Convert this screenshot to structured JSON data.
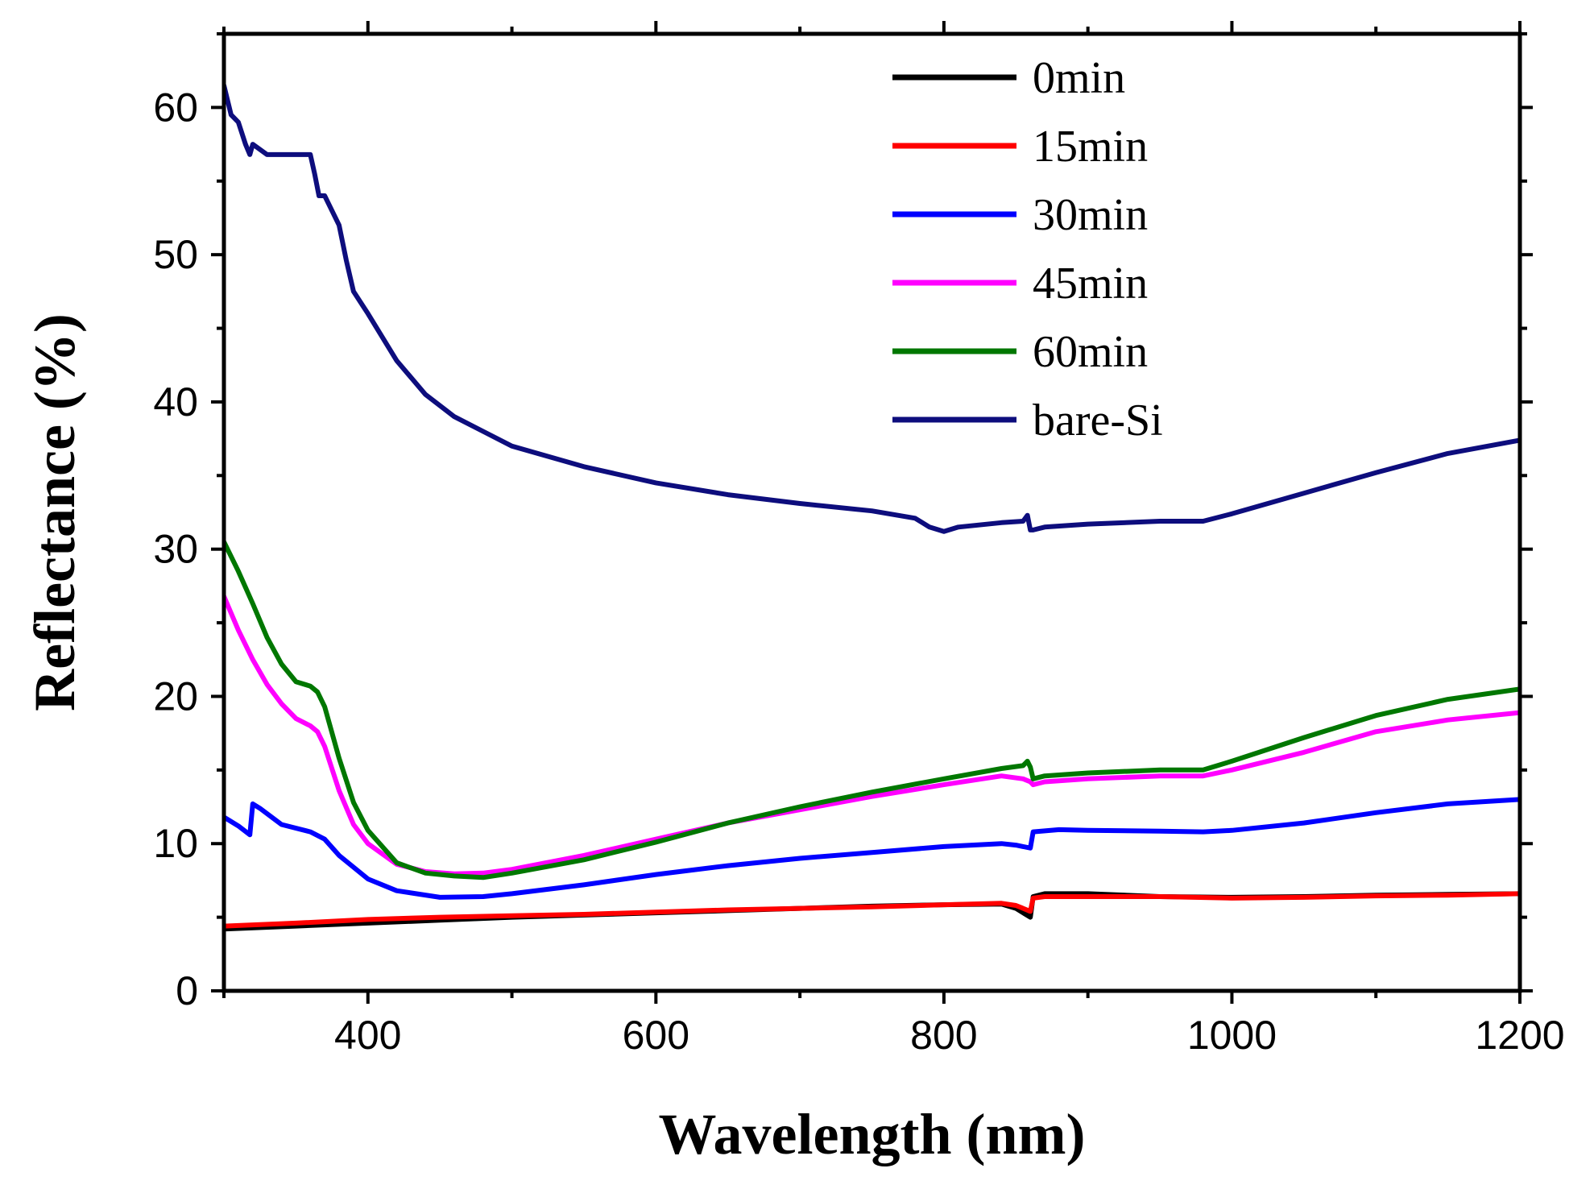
{
  "chart_data": {
    "type": "line",
    "title": "",
    "xlabel": "Wavelength (nm)",
    "ylabel": "Reflectance (%)",
    "xlim": [
      300,
      1200
    ],
    "ylim": [
      0,
      65
    ],
    "xticks": [
      400,
      600,
      800,
      1000,
      1200
    ],
    "yticks": [
      0,
      10,
      20,
      30,
      40,
      50,
      60
    ],
    "xtick_labels": [
      "400",
      "600",
      "800",
      "1000",
      "1200"
    ],
    "ytick_labels": [
      "0",
      "10",
      "20",
      "30",
      "40",
      "50",
      "60"
    ],
    "legend_position": "top-right",
    "grid": false,
    "series": [
      {
        "name": "0min",
        "color": "#000000",
        "x": [
          300,
          350,
          400,
          450,
          500,
          550,
          600,
          650,
          700,
          750,
          800,
          840,
          850,
          855,
          860,
          862,
          870,
          900,
          950,
          1000,
          1050,
          1100,
          1150,
          1200
        ],
        "y": [
          4.2,
          4.4,
          4.6,
          4.8,
          5.0,
          5.15,
          5.3,
          5.45,
          5.6,
          5.75,
          5.85,
          5.9,
          5.6,
          5.3,
          5.0,
          6.4,
          6.6,
          6.6,
          6.4,
          6.35,
          6.4,
          6.5,
          6.55,
          6.6
        ]
      },
      {
        "name": "15min",
        "color": "#ff0000",
        "x": [
          300,
          350,
          400,
          450,
          500,
          550,
          600,
          650,
          700,
          750,
          800,
          840,
          850,
          855,
          860,
          862,
          870,
          900,
          950,
          1000,
          1050,
          1100,
          1150,
          1200
        ],
        "y": [
          4.4,
          4.6,
          4.85,
          5.0,
          5.1,
          5.2,
          5.35,
          5.5,
          5.6,
          5.7,
          5.85,
          5.95,
          5.8,
          5.6,
          5.4,
          6.3,
          6.4,
          6.4,
          6.4,
          6.3,
          6.35,
          6.45,
          6.5,
          6.6
        ]
      },
      {
        "name": "30min",
        "color": "#0000ff",
        "x": [
          300,
          310,
          318,
          320,
          325,
          340,
          360,
          370,
          380,
          400,
          420,
          450,
          480,
          500,
          550,
          600,
          650,
          700,
          750,
          800,
          840,
          850,
          855,
          860,
          862,
          880,
          900,
          950,
          980,
          1000,
          1050,
          1100,
          1150,
          1200
        ],
        "y": [
          11.8,
          11.2,
          10.6,
          12.7,
          12.4,
          11.3,
          10.8,
          10.3,
          9.2,
          7.6,
          6.8,
          6.35,
          6.4,
          6.6,
          7.2,
          7.9,
          8.5,
          9.0,
          9.4,
          9.8,
          10.0,
          9.9,
          9.8,
          9.7,
          10.8,
          10.95,
          10.9,
          10.85,
          10.8,
          10.9,
          11.4,
          12.1,
          12.7,
          13.0
        ]
      },
      {
        "name": "45min",
        "color": "#ff00ff",
        "x": [
          300,
          310,
          320,
          330,
          340,
          350,
          360,
          365,
          370,
          380,
          390,
          400,
          420,
          440,
          460,
          480,
          500,
          550,
          600,
          650,
          700,
          750,
          800,
          840,
          855,
          860,
          862,
          870,
          900,
          950,
          980,
          1000,
          1050,
          1100,
          1150,
          1200
        ],
        "y": [
          26.8,
          24.5,
          22.5,
          20.8,
          19.5,
          18.5,
          18.0,
          17.6,
          16.6,
          13.6,
          11.3,
          10.0,
          8.6,
          8.1,
          7.95,
          8.0,
          8.25,
          9.2,
          10.3,
          11.4,
          12.3,
          13.2,
          14.0,
          14.6,
          14.4,
          14.2,
          14.0,
          14.2,
          14.4,
          14.6,
          14.6,
          15.0,
          16.2,
          17.6,
          18.4,
          18.9
        ]
      },
      {
        "name": "60min",
        "color": "#007700",
        "x": [
          300,
          310,
          320,
          330,
          340,
          350,
          360,
          365,
          370,
          380,
          390,
          400,
          420,
          440,
          460,
          480,
          500,
          550,
          600,
          650,
          700,
          750,
          800,
          840,
          855,
          858,
          860,
          862,
          870,
          900,
          950,
          980,
          1000,
          1050,
          1100,
          1150,
          1200
        ],
        "y": [
          30.5,
          28.5,
          26.3,
          24.0,
          22.2,
          21.0,
          20.7,
          20.3,
          19.3,
          15.8,
          12.8,
          10.9,
          8.7,
          8.0,
          7.8,
          7.7,
          8.0,
          8.9,
          10.1,
          11.4,
          12.5,
          13.5,
          14.4,
          15.1,
          15.3,
          15.6,
          15.2,
          14.4,
          14.6,
          14.8,
          15.0,
          15.0,
          15.6,
          17.2,
          18.7,
          19.8,
          20.5
        ]
      },
      {
        "name": "bare-Si",
        "color": "#0d0d7d",
        "x": [
          300,
          305,
          310,
          315,
          318,
          320,
          330,
          350,
          360,
          363,
          366,
          370,
          380,
          385,
          390,
          400,
          420,
          440,
          460,
          480,
          500,
          550,
          600,
          650,
          700,
          750,
          780,
          790,
          800,
          810,
          840,
          855,
          858,
          860,
          862,
          870,
          900,
          950,
          980,
          1000,
          1050,
          1100,
          1150,
          1200
        ],
        "y": [
          61.5,
          59.5,
          59.0,
          57.5,
          56.8,
          57.5,
          56.8,
          56.8,
          56.8,
          55.5,
          54.0,
          54.0,
          52.0,
          49.6,
          47.5,
          46.0,
          42.8,
          40.5,
          39.0,
          38.0,
          37.0,
          35.6,
          34.5,
          33.7,
          33.1,
          32.6,
          32.1,
          31.5,
          31.2,
          31.5,
          31.8,
          31.9,
          32.3,
          31.3,
          31.3,
          31.5,
          31.7,
          31.9,
          31.9,
          32.4,
          33.8,
          35.2,
          36.5,
          37.4
        ]
      }
    ]
  }
}
